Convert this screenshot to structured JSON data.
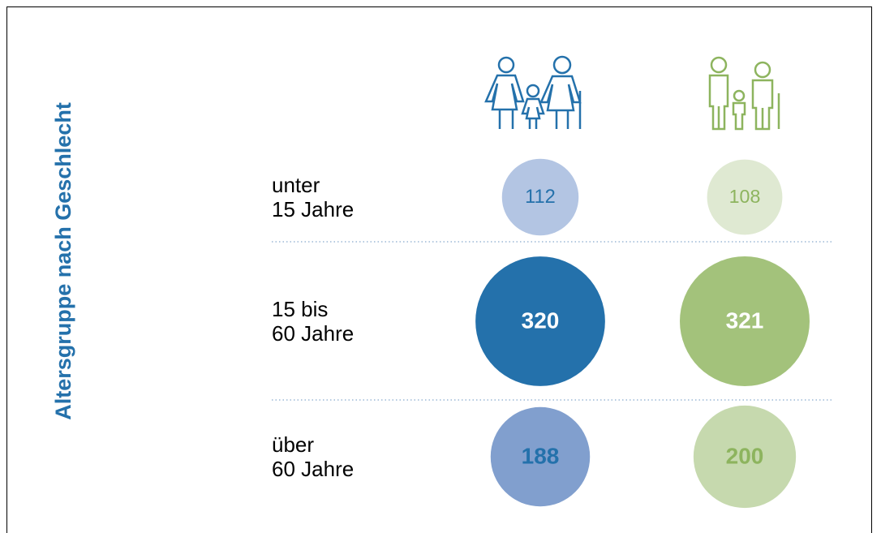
{
  "chart_data": {
    "type": "bubble",
    "title": "Altersgruppe nach Geschlecht",
    "categories": [
      "unter\n15 Jahre",
      "15 bis\n60 Jahre",
      "über\n60 Jahre"
    ],
    "series": [
      {
        "color": "#2471ab",
        "values": [
          112,
          320,
          188
        ],
        "colors": [
          "#b3c5e3",
          "#2471ab",
          "#819fce"
        ],
        "label_colors": [
          "#2471ab",
          "#ffffff",
          "#2471ab"
        ]
      },
      {
        "color": "#8db45e",
        "values": [
          108,
          321,
          200
        ],
        "colors": [
          "#dfe9d2",
          "#a3c27b",
          "#c6d9ae"
        ],
        "label_colors": [
          "#8db45e",
          "#ffffff",
          "#8db45e"
        ]
      }
    ]
  }
}
